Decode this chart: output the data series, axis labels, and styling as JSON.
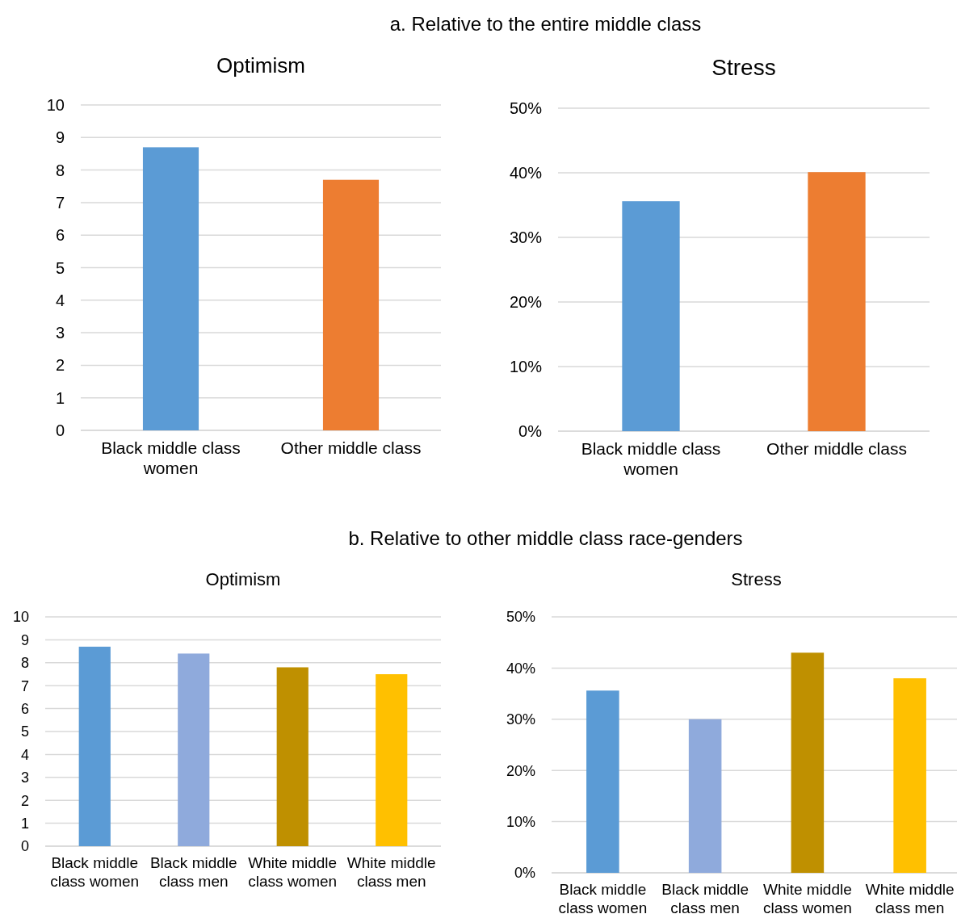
{
  "chart_data": [
    {
      "type": "bar",
      "subtitle": "a.    Relative to the entire middle class",
      "title": "Optimism",
      "categories": [
        "Black middle class women",
        "Other middle class"
      ],
      "values": [
        8.7,
        7.7
      ],
      "colors": [
        "#5b9bd5",
        "#ed7d31"
      ],
      "ylim": [
        0,
        10
      ],
      "yticks": [
        0,
        1,
        2,
        3,
        4,
        5,
        6,
        7,
        8,
        9,
        10
      ],
      "grid": "y"
    },
    {
      "type": "bar",
      "title": "Stress",
      "categories": [
        "Black middle class women",
        "Other middle class"
      ],
      "values": [
        35.6,
        40.1
      ],
      "colors": [
        "#5b9bd5",
        "#ed7d31"
      ],
      "ylim": [
        0,
        50
      ],
      "yticks": [
        {
          "value": 0,
          "label": "0%"
        },
        {
          "value": 10,
          "label": "10%"
        },
        {
          "value": 20,
          "label": "20%"
        },
        {
          "value": 30,
          "label": "30%"
        },
        {
          "value": 40,
          "label": "40%"
        },
        {
          "value": 50,
          "label": "50%"
        }
      ],
      "grid": "y"
    },
    {
      "type": "bar",
      "subtitle": "b.    Relative to other middle class race-genders",
      "title": "Optimism",
      "categories": [
        "Black middle class women",
        "Black middle class men",
        "White middle class women",
        "White middle class men"
      ],
      "values": [
        8.7,
        8.4,
        7.8,
        7.5
      ],
      "colors": [
        "#5b9bd5",
        "#8faadc",
        "#bf9000",
        "#ffc000"
      ],
      "ylim": [
        0,
        10
      ],
      "yticks": [
        0,
        1,
        2,
        3,
        4,
        5,
        6,
        7,
        8,
        9,
        10
      ],
      "grid": "y"
    },
    {
      "type": "bar",
      "title": "Stress",
      "categories": [
        "Black middle class women",
        "Black middle class men",
        "White middle class women",
        "White middle class men"
      ],
      "values": [
        35.6,
        30,
        43,
        38
      ],
      "colors": [
        "#5b9bd5",
        "#8faadc",
        "#bf9000",
        "#ffc000"
      ],
      "ylim": [
        0,
        50
      ],
      "yticks": [
        {
          "value": 0,
          "label": "0%"
        },
        {
          "value": 10,
          "label": "10%"
        },
        {
          "value": 20,
          "label": "20%"
        },
        {
          "value": 30,
          "label": "30%"
        },
        {
          "value": 40,
          "label": "40%"
        },
        {
          "value": 50,
          "label": "50%"
        }
      ],
      "grid": "y"
    }
  ]
}
